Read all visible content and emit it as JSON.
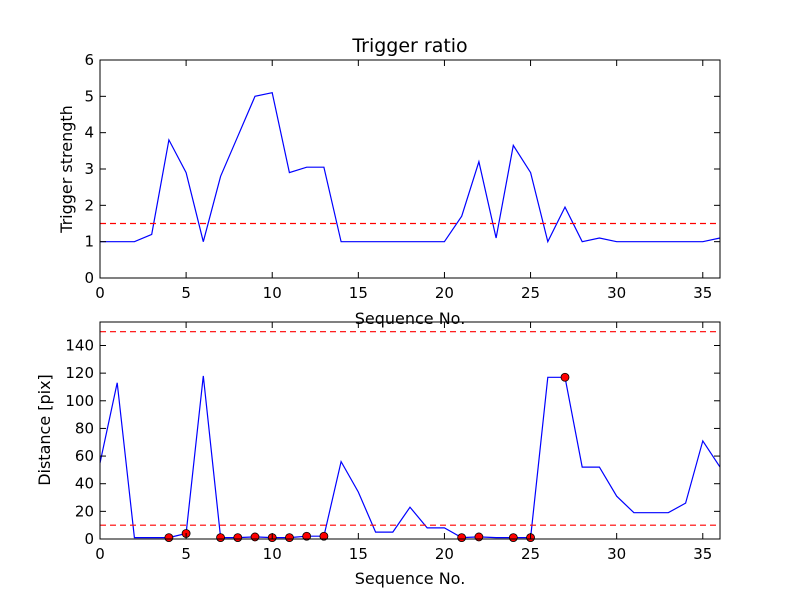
{
  "chart_data": [
    {
      "type": "line",
      "title": "Trigger ratio",
      "xlabel": "Sequence No.",
      "ylabel": "Trigger strength",
      "xlim": [
        0,
        36
      ],
      "ylim": [
        0,
        6
      ],
      "xticks": [
        0,
        5,
        10,
        15,
        20,
        25,
        30,
        35
      ],
      "yticks": [
        0,
        1,
        2,
        3,
        4,
        5,
        6
      ],
      "grid": false,
      "series": [
        {
          "color": "#0000ff",
          "style": "solid",
          "x": [
            0,
            1,
            2,
            3,
            4,
            5,
            6,
            7,
            8,
            9,
            10,
            11,
            12,
            13,
            14,
            15,
            16,
            17,
            18,
            19,
            20,
            21,
            22,
            23,
            24,
            25,
            26,
            27,
            28,
            29,
            30,
            31,
            32,
            33,
            34,
            35,
            36
          ],
          "y": [
            1.0,
            1.0,
            1.0,
            1.2,
            3.8,
            2.9,
            1.0,
            2.8,
            3.9,
            5.0,
            5.1,
            2.9,
            3.05,
            3.05,
            1.0,
            1.0,
            1.0,
            1.0,
            1.0,
            1.0,
            1.0,
            1.7,
            3.2,
            1.1,
            3.65,
            2.9,
            1.0,
            1.95,
            1.0,
            1.1,
            1.0,
            1.0,
            1.0,
            1.0,
            1.0,
            1.0,
            1.1
          ]
        }
      ],
      "hlines": [
        {
          "y": 1.5,
          "color": "#ff0000",
          "style": "dashed"
        }
      ]
    },
    {
      "type": "line",
      "title": "",
      "xlabel": "Sequence No.",
      "ylabel": "Distance [pix]",
      "xlim": [
        0,
        36
      ],
      "ylim": [
        0,
        157
      ],
      "xticks": [
        0,
        5,
        10,
        15,
        20,
        25,
        30,
        35
      ],
      "yticks": [
        0,
        20,
        40,
        60,
        80,
        100,
        120,
        140
      ],
      "grid": false,
      "series": [
        {
          "color": "#0000ff",
          "style": "solid",
          "x": [
            0,
            1,
            2,
            3,
            4,
            5,
            6,
            7,
            8,
            9,
            10,
            11,
            12,
            13,
            14,
            15,
            16,
            17,
            18,
            19,
            20,
            21,
            22,
            23,
            24,
            25,
            26,
            27,
            28,
            29,
            30,
            31,
            32,
            33,
            34,
            35,
            36
          ],
          "y": [
            55,
            113,
            1,
            1,
            1,
            4,
            118,
            1,
            1,
            1.5,
            1,
            1,
            2,
            2,
            56,
            34,
            5,
            5,
            23,
            8,
            8,
            1,
            1.5,
            1,
            1,
            1,
            117,
            117,
            52,
            52,
            31,
            19,
            19,
            19,
            26,
            71,
            52
          ]
        }
      ],
      "markers": {
        "color": "#ff0000",
        "x": [
          4,
          5,
          7,
          8,
          9,
          10,
          11,
          12,
          13,
          21,
          22,
          24,
          25,
          27
        ],
        "y": [
          1,
          4,
          1,
          1,
          1.5,
          1,
          1,
          2,
          2,
          1,
          1.5,
          1,
          1,
          117
        ]
      },
      "hlines": [
        {
          "y": 150,
          "color": "#ff0000",
          "style": "dashed"
        },
        {
          "y": 10,
          "color": "#ff0000",
          "style": "dashed"
        }
      ]
    }
  ]
}
